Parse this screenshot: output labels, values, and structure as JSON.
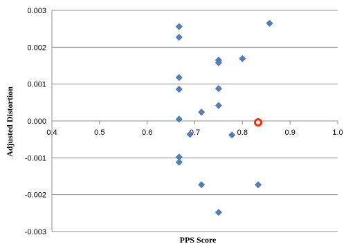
{
  "chart_data": {
    "type": "scatter",
    "title": "",
    "xlabel": "PPS Score",
    "ylabel": "Adjusted Distortion",
    "xlim": [
      0.4,
      1.0
    ],
    "ylim": [
      -0.003,
      0.003
    ],
    "x_ticks": [
      "0.4",
      "0.5",
      "0.6",
      "0.7",
      "0.8",
      "0.9",
      "1.0"
    ],
    "y_ticks": [
      "0.003",
      "0.002",
      "0.001",
      "0.000",
      "-0.001",
      "-0.002",
      "-0.003"
    ],
    "grid": "horizontal",
    "series": [
      {
        "marker": "diamond",
        "color": "#4f81bd",
        "points": [
          {
            "x": 0.667,
            "y": 0.00256
          },
          {
            "x": 0.667,
            "y": 0.00227
          },
          {
            "x": 0.667,
            "y": 0.00118
          },
          {
            "x": 0.667,
            "y": 0.00086
          },
          {
            "x": 0.667,
            "y": 5e-05
          },
          {
            "x": 0.667,
            "y": -0.00098
          },
          {
            "x": 0.667,
            "y": -0.00112
          },
          {
            "x": 0.857,
            "y": 0.00265
          },
          {
            "x": 0.75,
            "y": 0.00165
          },
          {
            "x": 0.75,
            "y": 0.00158
          },
          {
            "x": 0.75,
            "y": 0.00088
          },
          {
            "x": 0.75,
            "y": 0.00042
          },
          {
            "x": 0.75,
            "y": -0.00248
          },
          {
            "x": 0.8,
            "y": 0.00169
          },
          {
            "x": 0.714,
            "y": 0.00024
          },
          {
            "x": 0.714,
            "y": -0.00173
          },
          {
            "x": 0.69,
            "y": -0.00036
          },
          {
            "x": 0.778,
            "y": -0.00038
          },
          {
            "x": 0.833,
            "y": -0.00173
          }
        ]
      },
      {
        "marker": "circle-open",
        "color": "#ff2a00",
        "points": [
          {
            "x": 0.833,
            "y": -4e-05
          }
        ]
      }
    ]
  }
}
